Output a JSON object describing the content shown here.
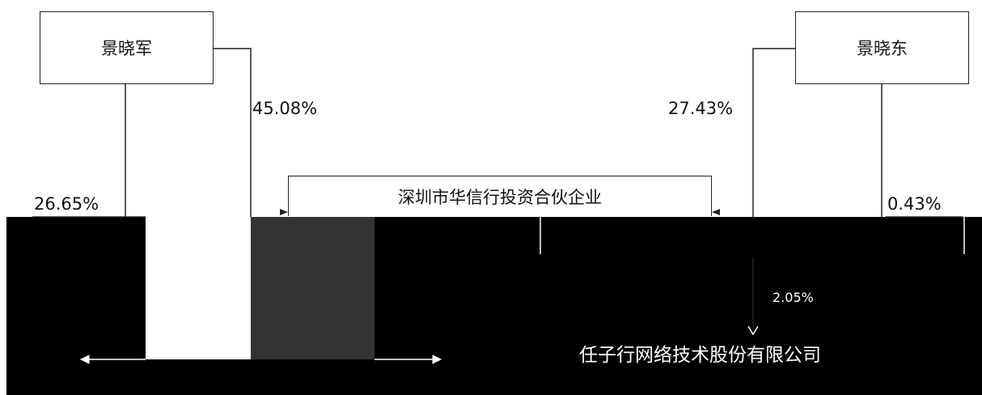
{
  "nodes": {
    "jing_xiaojun": "景晓军",
    "jing_xiaodong": "景晓东",
    "partnership": "深圳市华信行投资合伙企业",
    "company": "任子行网络技术股份有限公司"
  },
  "edges": {
    "xiaojun_to_partnership": "45.08%",
    "xiaojun_direct": "26.65%",
    "xiaodong_to_partnership": "27.43%",
    "xiaodong_direct": "0.43%",
    "partnership_to_company": "2.05%"
  }
}
